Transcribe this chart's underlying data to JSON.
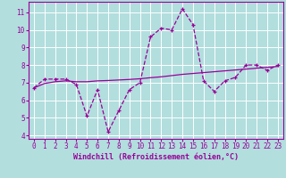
{
  "xlabel": "Windchill (Refroidissement éolien,°C)",
  "background_color": "#b2dede",
  "line_color": "#990099",
  "grid_color": "#ffffff",
  "x_values": [
    0,
    1,
    2,
    3,
    4,
    5,
    6,
    7,
    8,
    9,
    10,
    11,
    12,
    13,
    14,
    15,
    16,
    17,
    18,
    19,
    20,
    21,
    22,
    23
  ],
  "y_main": [
    6.7,
    7.2,
    7.2,
    7.2,
    6.9,
    5.1,
    6.6,
    4.2,
    5.4,
    6.6,
    7.0,
    9.6,
    10.1,
    10.0,
    11.2,
    10.3,
    7.1,
    6.5,
    7.1,
    7.3,
    8.0,
    8.0,
    7.7,
    8.0
  ],
  "y_trend": [
    6.7,
    6.95,
    7.05,
    7.1,
    7.05,
    7.05,
    7.1,
    7.12,
    7.15,
    7.18,
    7.22,
    7.28,
    7.33,
    7.4,
    7.47,
    7.52,
    7.57,
    7.62,
    7.67,
    7.72,
    7.77,
    7.82,
    7.87,
    7.92
  ],
  "ylim": [
    3.8,
    11.6
  ],
  "xlim": [
    -0.5,
    23.5
  ],
  "yticks": [
    4,
    5,
    6,
    7,
    8,
    9,
    10,
    11
  ],
  "xticks": [
    0,
    1,
    2,
    3,
    4,
    5,
    6,
    7,
    8,
    9,
    10,
    11,
    12,
    13,
    14,
    15,
    16,
    17,
    18,
    19,
    20,
    21,
    22,
    23
  ],
  "tick_fontsize": 5.5,
  "xlabel_fontsize": 6.0
}
